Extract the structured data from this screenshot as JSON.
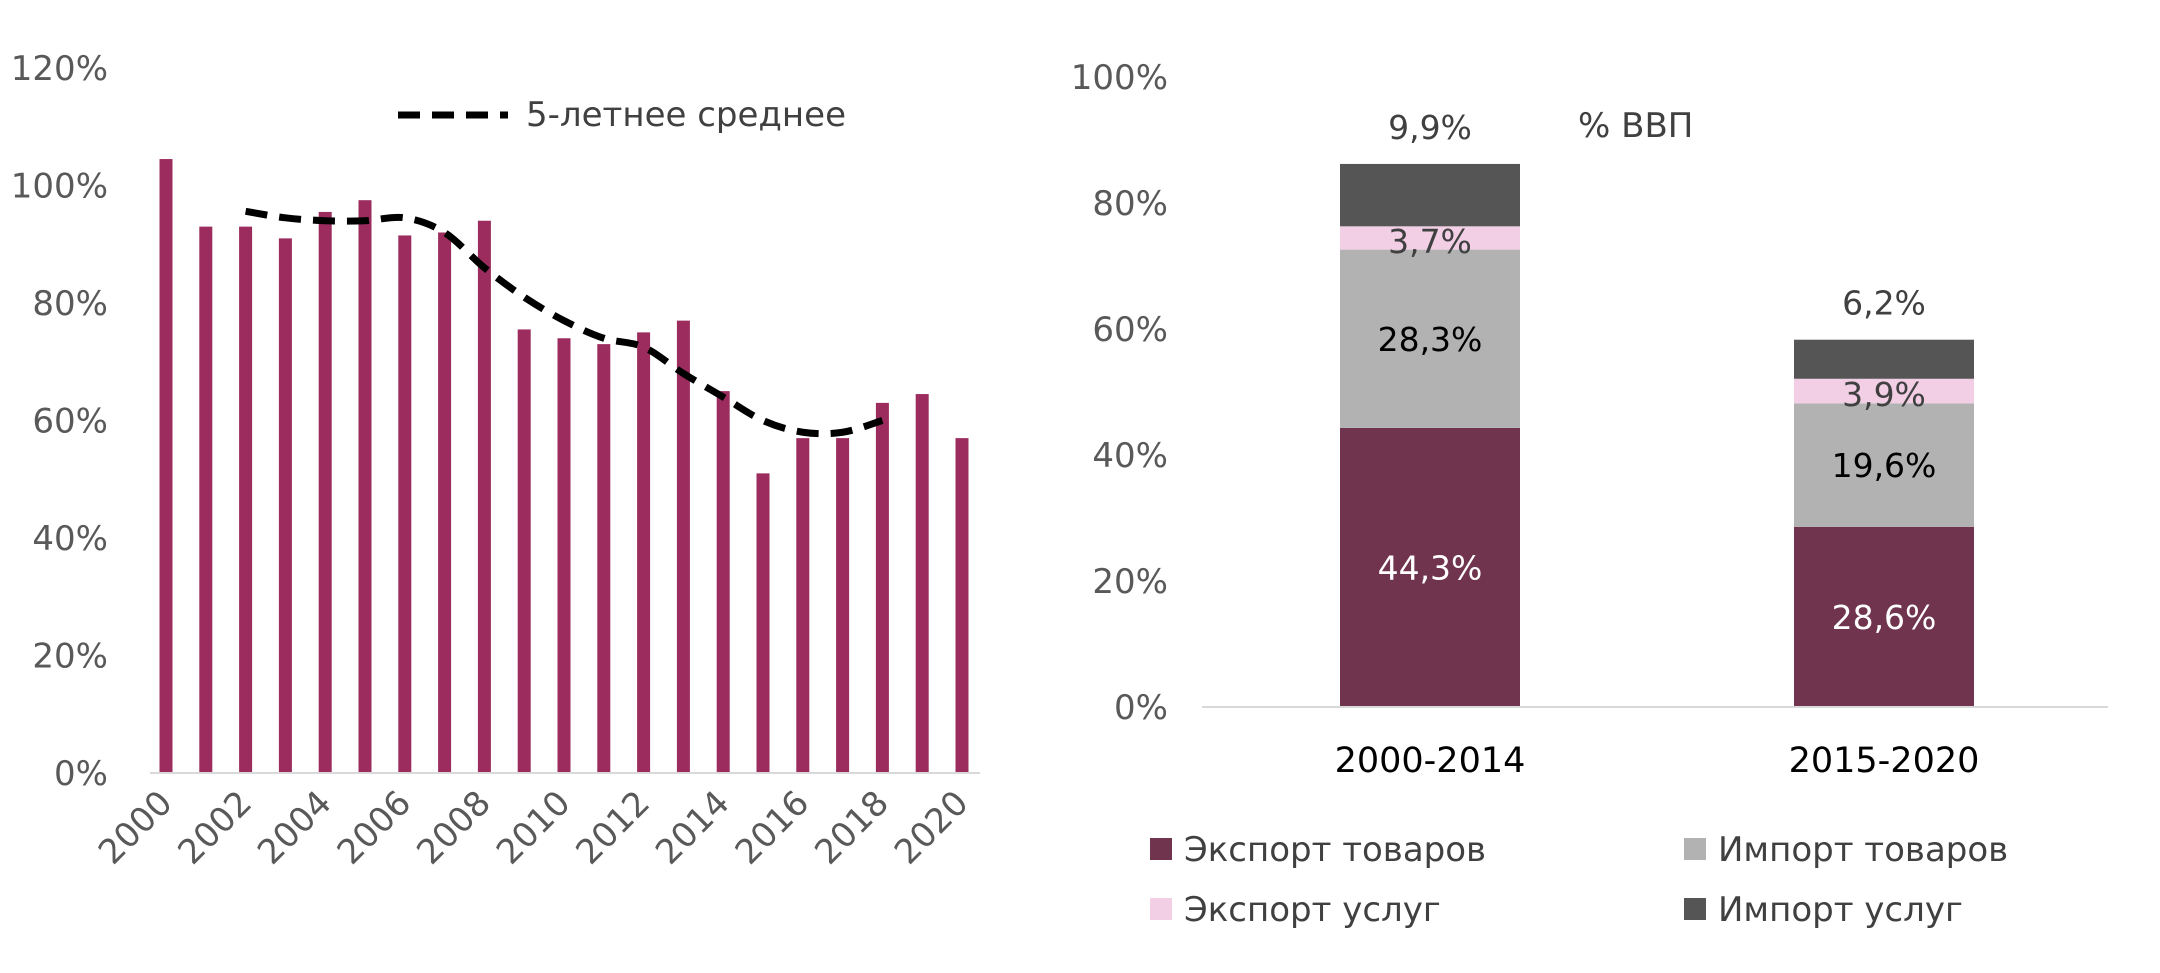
{
  "chart_data": [
    {
      "type": "bar",
      "x": [
        2000,
        2001,
        2002,
        2003,
        2004,
        2005,
        2006,
        2007,
        2008,
        2009,
        2010,
        2011,
        2012,
        2013,
        2014,
        2015,
        2016,
        2017,
        2018,
        2019,
        2020
      ],
      "x_tick_labels": [
        "2000",
        "2002",
        "2004",
        "2006",
        "2008",
        "2010",
        "2012",
        "2014",
        "2016",
        "2018",
        "2020"
      ],
      "series": [
        {
          "values": [
            104.5,
            93,
            93,
            91,
            95.5,
            97.5,
            91.5,
            92,
            94,
            75.5,
            74,
            73,
            75,
            77,
            65,
            51,
            57,
            57,
            63,
            64.5,
            57
          ],
          "color": "#9b2c5d"
        },
        {
          "type": "line",
          "name": "5-летнее среднее",
          "style": "dashed",
          "color": "#000000",
          "x": [
            2002,
            2003,
            2004,
            2005,
            2006,
            2007,
            2008,
            2009,
            2010,
            2011,
            2012,
            2013,
            2014,
            2015,
            2016,
            2017,
            2018
          ],
          "values": [
            95.6,
            94.5,
            94,
            94,
            94.5,
            92,
            86,
            81,
            77,
            74,
            72.5,
            68,
            64,
            60,
            58,
            58,
            60
          ]
        }
      ],
      "y_tick_labels": [
        "0%",
        "20%",
        "40%",
        "60%",
        "80%",
        "100%",
        "120%"
      ],
      "ylim": [
        0,
        120
      ],
      "grid": false,
      "legend_position": "top"
    },
    {
      "type": "bar",
      "stacked": true,
      "categories": [
        "2000-2014",
        "2015-2020"
      ],
      "series": [
        {
          "name": "Экспорт товаров",
          "values": [
            44.3,
            28.6
          ],
          "labels": [
            "44,3%",
            "28,6%"
          ],
          "color": "#71344f",
          "label_color": "#ffffff"
        },
        {
          "name": "Импорт товаров",
          "values": [
            28.3,
            19.6
          ],
          "labels": [
            "28,3%",
            "19,6%"
          ],
          "color": "#b2b2b2",
          "label_color": "#000000"
        },
        {
          "name": "Экспорт услуг",
          "values": [
            3.7,
            3.9
          ],
          "labels": [
            "3,7%",
            "3,9%"
          ],
          "color": "#f2cfe5",
          "label_color": "#404040"
        },
        {
          "name": "Импорт услуг",
          "values": [
            9.9,
            6.2
          ],
          "labels": [
            "9,9%",
            "6,2%"
          ],
          "color": "#555555",
          "label_color": "#404040"
        }
      ],
      "annotation": "% ВВП",
      "y_tick_labels": [
        "0%",
        "20%",
        "40%",
        "60%",
        "80%",
        "100%"
      ],
      "ylim": [
        0,
        100
      ],
      "grid": false,
      "legend_position": "bottom"
    }
  ]
}
